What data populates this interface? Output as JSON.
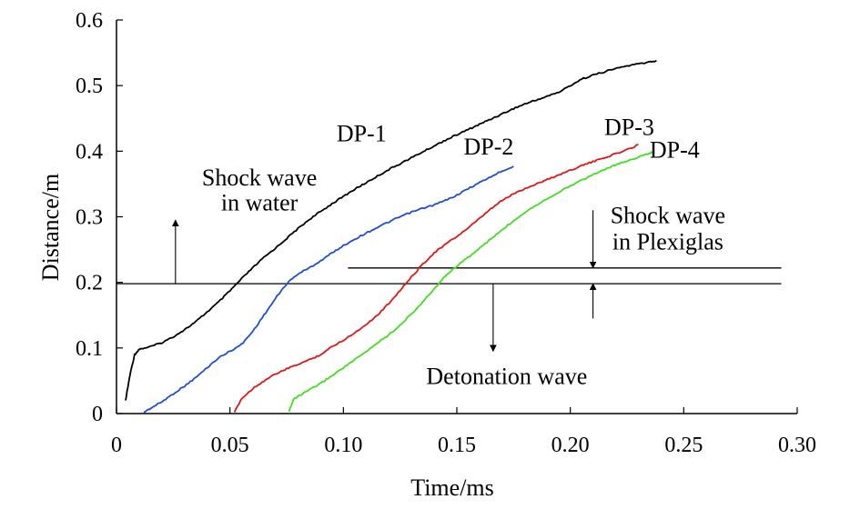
{
  "chart_data": {
    "type": "line",
    "title": "",
    "xlabel": "Time/ms",
    "ylabel": "Distance/m",
    "xlim": [
      0,
      0.3
    ],
    "ylim": [
      0,
      0.6
    ],
    "x_ticks": [
      0,
      0.05,
      0.1,
      0.15,
      0.2,
      0.25,
      0.3
    ],
    "x_tick_labels": [
      "0",
      "0.05",
      "0.10",
      "0.15",
      "0.20",
      "0.25",
      "0.30"
    ],
    "y_ticks": [
      0,
      0.1,
      0.2,
      0.3,
      0.4,
      0.5,
      0.6
    ],
    "y_tick_labels": [
      "0",
      "0.1",
      "0.2",
      "0.3",
      "0.4",
      "0.5",
      "0.6"
    ],
    "grid": false,
    "series": [
      {
        "name": "DP-1",
        "color": "#000000",
        "x": [
          0.004,
          0.006,
          0.008,
          0.01,
          0.015,
          0.02,
          0.025,
          0.03,
          0.035,
          0.04,
          0.045,
          0.05,
          0.055,
          0.06,
          0.065,
          0.07,
          0.075,
          0.08,
          0.085,
          0.09,
          0.095,
          0.1,
          0.105,
          0.11,
          0.115,
          0.12,
          0.125,
          0.13,
          0.135,
          0.14,
          0.145,
          0.15,
          0.155,
          0.16,
          0.165,
          0.17,
          0.175,
          0.18,
          0.185,
          0.19,
          0.195,
          0.2,
          0.205,
          0.21,
          0.215,
          0.22,
          0.225,
          0.23,
          0.235,
          0.238
        ],
        "y": [
          0.02,
          0.06,
          0.09,
          0.098,
          0.102,
          0.108,
          0.117,
          0.128,
          0.14,
          0.155,
          0.17,
          0.187,
          0.205,
          0.222,
          0.238,
          0.252,
          0.267,
          0.282,
          0.296,
          0.308,
          0.32,
          0.331,
          0.342,
          0.352,
          0.362,
          0.372,
          0.381,
          0.39,
          0.399,
          0.408,
          0.417,
          0.425,
          0.433,
          0.441,
          0.449,
          0.457,
          0.465,
          0.472,
          0.478,
          0.484,
          0.49,
          0.5,
          0.51,
          0.516,
          0.521,
          0.526,
          0.53,
          0.533,
          0.536,
          0.538
        ]
      },
      {
        "name": "DP-2",
        "color": "#1f4fd6",
        "x": [
          0.012,
          0.015,
          0.02,
          0.025,
          0.03,
          0.035,
          0.04,
          0.045,
          0.05,
          0.055,
          0.06,
          0.065,
          0.07,
          0.075,
          0.08,
          0.085,
          0.09,
          0.095,
          0.1,
          0.105,
          0.11,
          0.115,
          0.12,
          0.125,
          0.13,
          0.135,
          0.14,
          0.145,
          0.15,
          0.155,
          0.16,
          0.165,
          0.17,
          0.175
        ],
        "y": [
          0.002,
          0.008,
          0.018,
          0.03,
          0.042,
          0.055,
          0.07,
          0.085,
          0.095,
          0.105,
          0.125,
          0.15,
          0.175,
          0.198,
          0.213,
          0.222,
          0.233,
          0.245,
          0.256,
          0.266,
          0.275,
          0.284,
          0.292,
          0.3,
          0.307,
          0.313,
          0.318,
          0.325,
          0.333,
          0.343,
          0.352,
          0.361,
          0.37,
          0.377
        ]
      },
      {
        "name": "DP-3",
        "color": "#e01818",
        "x": [
          0.052,
          0.055,
          0.06,
          0.065,
          0.07,
          0.075,
          0.08,
          0.085,
          0.09,
          0.095,
          0.1,
          0.105,
          0.11,
          0.115,
          0.12,
          0.125,
          0.13,
          0.135,
          0.14,
          0.145,
          0.15,
          0.155,
          0.16,
          0.165,
          0.17,
          0.175,
          0.18,
          0.185,
          0.19,
          0.195,
          0.2,
          0.205,
          0.21,
          0.215,
          0.22,
          0.225,
          0.23
        ],
        "y": [
          0.002,
          0.022,
          0.038,
          0.05,
          0.06,
          0.068,
          0.075,
          0.082,
          0.09,
          0.102,
          0.112,
          0.123,
          0.136,
          0.15,
          0.168,
          0.188,
          0.208,
          0.228,
          0.245,
          0.258,
          0.27,
          0.283,
          0.297,
          0.312,
          0.325,
          0.335,
          0.343,
          0.35,
          0.357,
          0.364,
          0.371,
          0.378,
          0.384,
          0.39,
          0.396,
          0.402,
          0.41
        ]
      },
      {
        "name": "DP-4",
        "color": "#44dd22",
        "x": [
          0.076,
          0.078,
          0.082,
          0.085,
          0.09,
          0.095,
          0.1,
          0.105,
          0.11,
          0.115,
          0.12,
          0.125,
          0.13,
          0.135,
          0.14,
          0.145,
          0.15,
          0.155,
          0.16,
          0.165,
          0.17,
          0.175,
          0.18,
          0.185,
          0.19,
          0.195,
          0.2,
          0.205,
          0.21,
          0.215,
          0.22,
          0.225,
          0.23,
          0.235,
          0.237
        ],
        "y": [
          0.003,
          0.022,
          0.03,
          0.036,
          0.046,
          0.058,
          0.07,
          0.082,
          0.094,
          0.108,
          0.12,
          0.135,
          0.152,
          0.17,
          0.19,
          0.21,
          0.225,
          0.238,
          0.252,
          0.266,
          0.28,
          0.294,
          0.307,
          0.318,
          0.328,
          0.338,
          0.347,
          0.356,
          0.364,
          0.372,
          0.379,
          0.385,
          0.391,
          0.397,
          0.399
        ]
      }
    ],
    "reference_lines": [
      {
        "name": "detonation-front-line",
        "orientation": "horizontal",
        "y": 0.198,
        "x_range": [
          0,
          0.293
        ]
      },
      {
        "name": "plexiglas-interface-line",
        "orientation": "horizontal",
        "y": 0.222,
        "x_range": [
          0.102,
          0.293
        ]
      }
    ],
    "annotations": [
      {
        "name": "dp1-label",
        "text": "DP-1",
        "x": 0.108,
        "y": 0.415
      },
      {
        "name": "dp2-label",
        "text": "DP-2",
        "x": 0.164,
        "y": 0.395
      },
      {
        "name": "dp3-label",
        "text": "DP-3",
        "x": 0.226,
        "y": 0.425
      },
      {
        "name": "dp4-label",
        "text": "DP-4",
        "x": 0.246,
        "y": 0.39
      },
      {
        "name": "shock-water-label-1",
        "text": "Shock wave",
        "x": 0.063,
        "y": 0.348
      },
      {
        "name": "shock-water-label-2",
        "text": "in water",
        "x": 0.063,
        "y": 0.31
      },
      {
        "name": "shock-plexiglas-label-1",
        "text": "Shock wave",
        "x": 0.243,
        "y": 0.29
      },
      {
        "name": "shock-plexiglas-label-2",
        "text": "in Plexiglas",
        "x": 0.243,
        "y": 0.25
      },
      {
        "name": "detonation-label",
        "text": "Detonation wave",
        "x": 0.172,
        "y": 0.045
      }
    ],
    "arrows": [
      {
        "name": "shock-water-arrow",
        "x": 0.026,
        "y_from": 0.198,
        "y_to": 0.295
      },
      {
        "name": "detonation-arrow",
        "x": 0.166,
        "y_from": 0.198,
        "y_to": 0.095
      },
      {
        "name": "plexiglas-arrow-down",
        "x": 0.21,
        "y_from": 0.31,
        "y_to": 0.222
      },
      {
        "name": "plexiglas-arrow-up",
        "x": 0.21,
        "y_from": 0.145,
        "y_to": 0.198
      }
    ]
  }
}
